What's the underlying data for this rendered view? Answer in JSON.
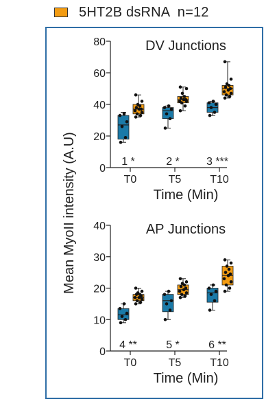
{
  "legend": {
    "label": "5HT2B dsRNA  n=12",
    "color": "#f39c12"
  },
  "ylabel": "Mean MyoII intensity (A.U)",
  "colors": {
    "control": "#1b7aa8",
    "treatment": "#f39c12",
    "frame": "#2f6ea6"
  },
  "chart_data": [
    {
      "type": "box",
      "title": "DV Junctions",
      "xlabel": "Time (Min)",
      "categories": [
        "T0",
        "T5",
        "T10"
      ],
      "ylim": [
        0,
        80
      ],
      "yticks": [
        0,
        20,
        40,
        60,
        80
      ],
      "series": [
        {
          "color": "#1b7aa8",
          "boxes": [
            {
              "category": "T0",
              "min": 16,
              "q1": 18,
              "median": 27,
              "q3": 33,
              "max": 35,
              "points": [
                16,
                19,
                26,
                29,
                33,
                34
              ]
            },
            {
              "category": "T5",
              "min": 25,
              "q1": 31,
              "median": 36,
              "q3": 38,
              "max": 39,
              "points": [
                25,
                31,
                34,
                37,
                38,
                39
              ]
            },
            {
              "category": "T10",
              "min": 33,
              "q1": 35,
              "median": 38,
              "q3": 41,
              "max": 42,
              "points": [
                33,
                35,
                38,
                40,
                41,
                42
              ]
            }
          ]
        },
        {
          "color": "#f39c12",
          "boxes": [
            {
              "category": "T0",
              "min": 32,
              "q1": 34,
              "median": 37,
              "q3": 40,
              "max": 46,
              "points": [
                32,
                33,
                34,
                35,
                36,
                37,
                37,
                38,
                39,
                40,
                42,
                46
              ]
            },
            {
              "category": "T5",
              "min": 36,
              "q1": 41,
              "median": 43,
              "q3": 45,
              "max": 51,
              "points": [
                36,
                39,
                41,
                42,
                42,
                43,
                43,
                44,
                45,
                47,
                50,
                51
              ]
            },
            {
              "category": "T10",
              "min": 44,
              "q1": 46,
              "median": 50,
              "q3": 52,
              "max": 67,
              "points": [
                44,
                45,
                46,
                47,
                48,
                49,
                50,
                51,
                52,
                53,
                56,
                67
              ]
            }
          ]
        }
      ],
      "annotations": [
        {
          "category": "T0",
          "text": "1 *"
        },
        {
          "category": "T5",
          "text": "2 *"
        },
        {
          "category": "T10",
          "text": "3 ***"
        }
      ]
    },
    {
      "type": "box",
      "title": "AP Junctions",
      "xlabel": "Time (Min)",
      "categories": [
        "T0",
        "T5",
        "T10"
      ],
      "ylim": [
        0,
        40
      ],
      "yticks": [
        0,
        10,
        20,
        30,
        40
      ],
      "series": [
        {
          "color": "#1b7aa8",
          "boxes": [
            {
              "category": "T0",
              "min": 9,
              "q1": 10,
              "median": 11.5,
              "q3": 13.5,
              "max": 15,
              "points": [
                9,
                10,
                11,
                12,
                13.5,
                15
              ]
            },
            {
              "category": "T5",
              "min": 10,
              "q1": 12.5,
              "median": 16,
              "q3": 18,
              "max": 19,
              "points": [
                10,
                13,
                15,
                16,
                18,
                19
              ]
            },
            {
              "category": "T10",
              "min": 13,
              "q1": 15.5,
              "median": 18.5,
              "q3": 20,
              "max": 21,
              "points": [
                13,
                16,
                18,
                19,
                20,
                21
              ]
            }
          ]
        },
        {
          "color": "#f39c12",
          "boxes": [
            {
              "category": "T0",
              "min": 15,
              "q1": 16,
              "median": 17,
              "q3": 18,
              "max": 20,
              "points": [
                15,
                15.5,
                16,
                16.5,
                17,
                17,
                17.5,
                18,
                18,
                18.5,
                19,
                20
              ]
            },
            {
              "category": "T5",
              "min": 17,
              "q1": 18,
              "median": 19.5,
              "q3": 21,
              "max": 23,
              "points": [
                17,
                17.5,
                18,
                18.5,
                19,
                19.5,
                20,
                20.5,
                21,
                21.5,
                22,
                23
              ]
            },
            {
              "category": "T10",
              "min": 19,
              "q1": 21,
              "median": 24,
              "q3": 27,
              "max": 29,
              "points": [
                19,
                20,
                21,
                22,
                23,
                24,
                24.5,
                25,
                26,
                27,
                28,
                29
              ]
            }
          ]
        }
      ],
      "annotations": [
        {
          "category": "T0",
          "text": "4 **"
        },
        {
          "category": "T5",
          "text": "5 *"
        },
        {
          "category": "T10",
          "text": "6 **"
        }
      ]
    }
  ]
}
